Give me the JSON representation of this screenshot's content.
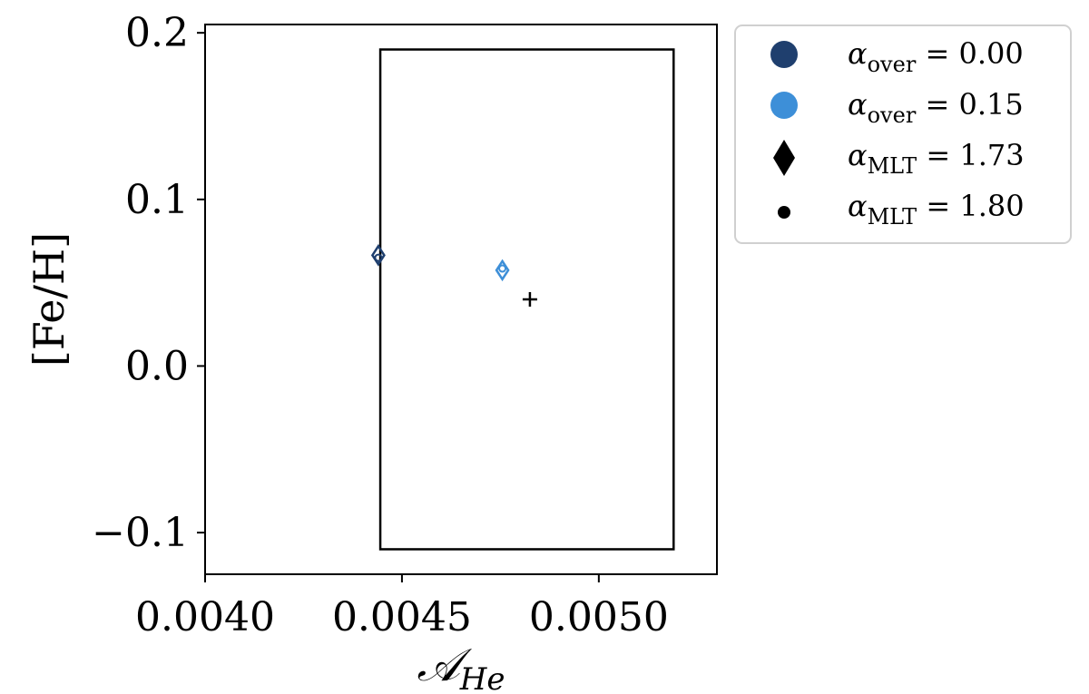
{
  "chart_data": {
    "type": "scatter",
    "xlabel": {
      "main": "𝒜",
      "sub": "He"
    },
    "ylabel": "[Fe/H]",
    "xlim": [
      0.004,
      0.0053
    ],
    "ylim": [
      -0.125,
      0.205
    ],
    "xticks": [
      {
        "value": 0.004,
        "label": "0.0040"
      },
      {
        "value": 0.0045,
        "label": "0.0045"
      },
      {
        "value": 0.005,
        "label": "0.0050"
      }
    ],
    "yticks": [
      {
        "value": 0.2,
        "label": "0.2"
      },
      {
        "value": 0.1,
        "label": "0.1"
      },
      {
        "value": 0.0,
        "label": "0.0"
      },
      {
        "value": -0.1,
        "label": "−0.1"
      }
    ],
    "grid": false,
    "legend_position": "outside-right",
    "series": [
      {
        "name": "α_over = 0.00",
        "color": "#1f3f6e",
        "points": [
          {
            "x": 0.00444,
            "y": 0.0665,
            "marker": "diamond"
          },
          {
            "x": 0.00444,
            "y": 0.065,
            "marker": "dot"
          }
        ]
      },
      {
        "name": "α_over = 0.15",
        "color": "#3d8fd8",
        "points": [
          {
            "x": 0.004755,
            "y": 0.0575,
            "marker": "diamond"
          },
          {
            "x": 0.004755,
            "y": 0.0585,
            "marker": "dot"
          }
        ]
      }
    ],
    "reference_point": {
      "x": 0.004825,
      "y": 0.04,
      "marker": "plus",
      "color": "#000000"
    },
    "box": {
      "x0": 0.004445,
      "x1": 0.00519,
      "y0": -0.11,
      "y1": 0.19
    },
    "legend": [
      {
        "marker": "circle",
        "color": "#1f3f6e",
        "symbol": "α",
        "sub": "over",
        "rest": " = 0.00"
      },
      {
        "marker": "circle",
        "color": "#3d8fd8",
        "symbol": "α",
        "sub": "over",
        "rest": " = 0.15"
      },
      {
        "marker": "diamond",
        "color": "#000000",
        "symbol": "α",
        "sub": "MLT",
        "rest": " = 1.73"
      },
      {
        "marker": "dot",
        "color": "#000000",
        "symbol": "α",
        "sub": "MLT",
        "rest": " = 1.80"
      }
    ]
  }
}
